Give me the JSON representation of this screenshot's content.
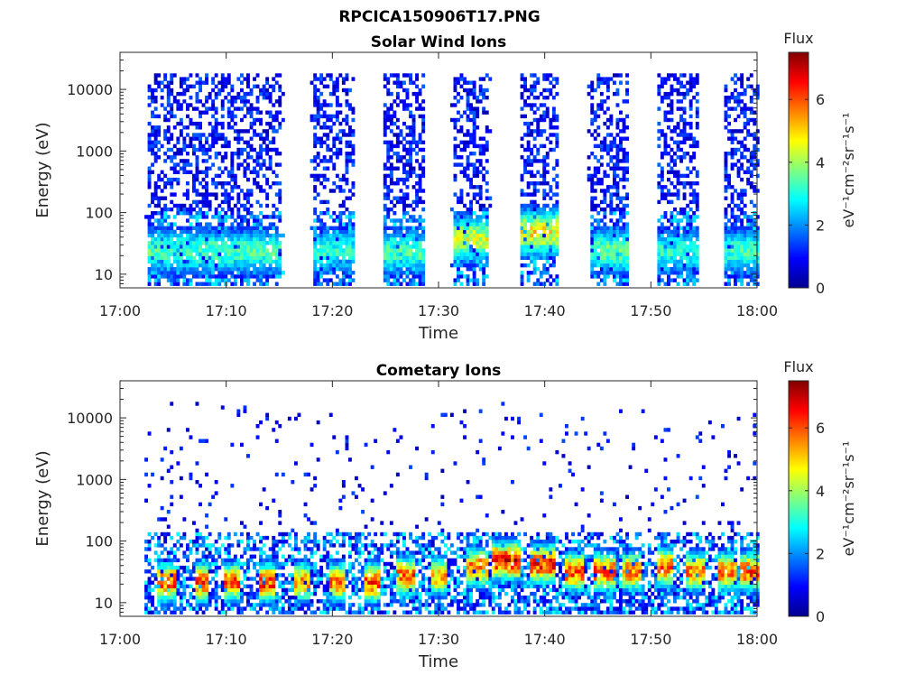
{
  "figure": {
    "title": "RPCICA150906T17.PNG"
  },
  "colormap": {
    "name": "jet",
    "stops": [
      "#00008f",
      "#0000ff",
      "#0080ff",
      "#00ffff",
      "#80ff80",
      "#ffff00",
      "#ff8000",
      "#ff0000",
      "#800000"
    ]
  },
  "chart_data": [
    {
      "type": "heatmap",
      "title": "Solar Wind Ions",
      "xlabel": "Time",
      "ylabel": "Energy (eV)",
      "x_ticks": [
        "17:00",
        "17:10",
        "17:20",
        "17:30",
        "17:40",
        "17:50",
        "18:00"
      ],
      "x_range_minutes": [
        0,
        60
      ],
      "y_scale": "log",
      "y_range": [
        6,
        40000
      ],
      "y_ticks": [
        10,
        100,
        1000,
        10000
      ],
      "y_tick_labels": [
        "10",
        "100",
        "1000",
        "10000"
      ],
      "colorbar": {
        "title": "Flux",
        "range": [
          0,
          7.5
        ],
        "ticks": [
          0,
          2,
          4,
          6
        ],
        "tick_labels": [
          "0",
          "2",
          "4",
          "6"
        ],
        "label": "eV⁻¹cm⁻²sr⁻¹s⁻¹"
      },
      "data_gaps_minutes": [
        [
          15.3,
          17.8
        ],
        [
          22,
          24.7
        ],
        [
          28.5,
          31
        ],
        [
          34.8,
          37.5
        ],
        [
          41.2,
          43.8
        ],
        [
          47.8,
          50.3
        ],
        [
          54.3,
          56.8
        ]
      ],
      "bursts": [
        {
          "t_start": 2.5,
          "t_end": 15,
          "peak_energy_eV": 22,
          "peak_flux": 3.6
        },
        {
          "t_start": 18,
          "t_end": 22,
          "peak_energy_eV": 22,
          "peak_flux": 3.3
        },
        {
          "t_start": 24.8,
          "t_end": 28.5,
          "peak_energy_eV": 22,
          "peak_flux": 3.6
        },
        {
          "t_start": 31.2,
          "t_end": 34.7,
          "peak_energy_eV": 35,
          "peak_flux": 4.6
        },
        {
          "t_start": 37.6,
          "t_end": 41.2,
          "peak_energy_eV": 45,
          "peak_flux": 5.0
        },
        {
          "t_start": 44,
          "t_end": 47.7,
          "peak_energy_eV": 22,
          "peak_flux": 3.8
        },
        {
          "t_start": 50.4,
          "t_end": 54.2,
          "peak_energy_eV": 22,
          "peak_flux": 3.3
        },
        {
          "t_start": 56.8,
          "t_end": 60,
          "peak_energy_eV": 22,
          "peak_flux": 3.5
        }
      ]
    },
    {
      "type": "heatmap",
      "title": "Cometary Ions",
      "xlabel": "Time",
      "ylabel": "Energy (eV)",
      "x_ticks": [
        "17:00",
        "17:10",
        "17:20",
        "17:30",
        "17:40",
        "17:50",
        "18:00"
      ],
      "x_range_minutes": [
        0,
        60
      ],
      "y_scale": "log",
      "y_range": [
        6,
        40000
      ],
      "y_ticks": [
        10,
        100,
        1000,
        10000
      ],
      "y_tick_labels": [
        "10",
        "100",
        "1000",
        "10000"
      ],
      "colorbar": {
        "title": "Flux",
        "range": [
          0,
          7.5
        ],
        "ticks": [
          0,
          2,
          4,
          6
        ],
        "tick_labels": [
          "0",
          "2",
          "4",
          "6"
        ],
        "label": "eV⁻¹cm⁻²sr⁻¹s⁻¹"
      },
      "data_gaps_minutes": [],
      "bursts": [
        {
          "t_start": 3.2,
          "t_end": 5,
          "peak_energy_eV": 20,
          "peak_flux": 6.5
        },
        {
          "t_start": 6.8,
          "t_end": 8.2,
          "peak_energy_eV": 20,
          "peak_flux": 6.6
        },
        {
          "t_start": 9.7,
          "t_end": 11.3,
          "peak_energy_eV": 20,
          "peak_flux": 6.3
        },
        {
          "t_start": 13,
          "t_end": 14.5,
          "peak_energy_eV": 20,
          "peak_flux": 6.6
        },
        {
          "t_start": 16.3,
          "t_end": 17.8,
          "peak_energy_eV": 20,
          "peak_flux": 5.8
        },
        {
          "t_start": 19.5,
          "t_end": 21,
          "peak_energy_eV": 20,
          "peak_flux": 6.0
        },
        {
          "t_start": 22.8,
          "t_end": 24.3,
          "peak_energy_eV": 20,
          "peak_flux": 6.5
        },
        {
          "t_start": 26,
          "t_end": 27.8,
          "peak_energy_eV": 25,
          "peak_flux": 6.3
        },
        {
          "t_start": 29.2,
          "t_end": 30.8,
          "peak_energy_eV": 25,
          "peak_flux": 5.4
        },
        {
          "t_start": 32.5,
          "t_end": 34.5,
          "peak_energy_eV": 35,
          "peak_flux": 6.3
        },
        {
          "t_start": 35,
          "t_end": 37.5,
          "peak_energy_eV": 45,
          "peak_flux": 6.9
        },
        {
          "t_start": 38.5,
          "t_end": 40.8,
          "peak_energy_eV": 40,
          "peak_flux": 6.7
        },
        {
          "t_start": 41.8,
          "t_end": 43.5,
          "peak_energy_eV": 30,
          "peak_flux": 6.5
        },
        {
          "t_start": 44.5,
          "t_end": 46.5,
          "peak_energy_eV": 30,
          "peak_flux": 6.4
        },
        {
          "t_start": 47.2,
          "t_end": 49,
          "peak_energy_eV": 30,
          "peak_flux": 6.2
        },
        {
          "t_start": 50.3,
          "t_end": 52,
          "peak_energy_eV": 35,
          "peak_flux": 6.3
        },
        {
          "t_start": 53.2,
          "t_end": 55,
          "peak_energy_eV": 30,
          "peak_flux": 6.0
        },
        {
          "t_start": 56.2,
          "t_end": 58,
          "peak_energy_eV": 30,
          "peak_flux": 6.1
        },
        {
          "t_start": 58.2,
          "t_end": 59.9,
          "peak_energy_eV": 30,
          "peak_flux": 6.4
        }
      ]
    }
  ]
}
